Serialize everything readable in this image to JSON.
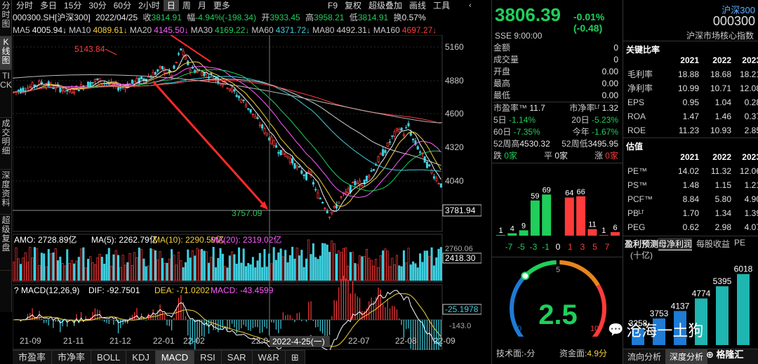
{
  "nav_left": [
    "分时图",
    "K线图",
    "TICK",
    "成交明细",
    "深度资料",
    "超级复盘"
  ],
  "period_tabs": [
    "分时",
    "多日",
    "15分",
    "30分",
    "60分",
    "2小时",
    "日",
    "周",
    "月",
    "更多"
  ],
  "period_active": "日",
  "right_tabs": [
    "F9",
    "复权",
    "超级叠加",
    "画线",
    "工具"
  ],
  "info": {
    "code": "000300.SH[沪深300]",
    "date": "2022/04/25",
    "close_label": "收",
    "close": "3814.91",
    "chg_label": "幅",
    "chg": "-4.94%(-198.34)",
    "open_label": "开",
    "open": "3933.45",
    "high_label": "高",
    "high": "3958.21",
    "low_label": "低",
    "low": "3814.91",
    "turn_label": "换",
    "turn": "0.57%"
  },
  "ma_bar": [
    {
      "label": "MA5",
      "value": "4005.94↓",
      "color": "#f0f0f0"
    },
    {
      "label": "MA10",
      "value": "4089.61↓",
      "color": "#f5d23a"
    },
    {
      "label": "MA20",
      "value": "4145.50↓",
      "color": "#ff5bff"
    },
    {
      "label": "MA30",
      "value": "4169.22↓",
      "color": "#1fcf5a"
    },
    {
      "label": "MA60",
      "value": "4371.72↓",
      "color": "#3fd0e0"
    },
    {
      "label": "MA80",
      "value": "4492.31↓",
      "color": "#cfcfcf"
    },
    {
      "label": "MA160",
      "value": "4697.27↓",
      "color": "#ff3b3b"
    }
  ],
  "price_axis": [
    "5160",
    "4880",
    "4600",
    "4320",
    "4040"
  ],
  "annotations": {
    "high_mark": "5143.84",
    "low_mark": "3757.09",
    "current_price_box": "3781.94"
  },
  "amo_bar": {
    "amo": "AMO: 2728.89亿",
    "ma5": "MA(5): 2262.79亿",
    "ma10": "MA(10): 2290.59亿",
    "ma20": "MA(20): 2319.02亿",
    "axis_top": "2760.06",
    "axis_value": "2418.30"
  },
  "macd_bar": {
    "name": "MACD(12,26,9)",
    "dif": "DIF: -92.7501",
    "dea": "DEA: -71.0202",
    "macd": "MACD: -43.4599",
    "axis_value": "-25.1978",
    "axis_low": "-143.0"
  },
  "x_axis": [
    "21-09",
    "21-11",
    "21-12",
    "22-01",
    "22-02",
    "22-04",
    "22-07",
    "22-08",
    "22-09"
  ],
  "cursor_date": "2022-4-25(一)",
  "bottom_tabs": [
    "市盈率",
    "市净率",
    "BOLL",
    "KDJ",
    "MACD",
    "RSI",
    "SAR",
    "W&R"
  ],
  "bottom_active": "MACD",
  "quote": {
    "price": "3806.39",
    "change": "-0.01% (-0.48)",
    "name": "沪深300",
    "code": "000300",
    "exch": "SSE  9:00:00",
    "desc": "沪深市场核心指数",
    "rows": [
      [
        "金额",
        "0"
      ],
      [
        "成交量",
        "0"
      ],
      [
        "开盘",
        "0.00"
      ],
      [
        "最高",
        "0.00"
      ],
      [
        "最低",
        "0.00"
      ]
    ],
    "pe_row": [
      "市盈率™",
      "11.7",
      "市净率ᴸᶠ",
      "1.32"
    ],
    "perf": [
      [
        "5日",
        "-1.14%",
        "20日",
        "-5.23%"
      ],
      [
        "60日",
        "-7.35%",
        "今年",
        "-1.67%"
      ]
    ],
    "wk52": [
      "52周高",
      "4530.32",
      "52周低",
      "3495.95"
    ],
    "updown": [
      "跌",
      "0家",
      "平",
      "0家",
      "涨",
      "0家"
    ]
  },
  "dist_chart": {
    "bars": [
      1,
      4,
      9,
      59,
      69,
      0,
      64,
      66,
      11,
      1,
      6
    ],
    "labels": [
      "-7",
      "-5",
      "-3",
      "-1",
      "0",
      "1",
      "3",
      "5",
      "7"
    ]
  },
  "gauge": {
    "value": "2.5",
    "min": "0",
    "mid": "5",
    "max": "10",
    "tech_label": "技术面:",
    "tech": "-分",
    "fund_label": "资金面:",
    "fund": "4.9分"
  },
  "ratios": {
    "title": "关键比率",
    "years": [
      "2021",
      "2022",
      "2023"
    ],
    "rows": [
      [
        "毛利率",
        "18.88",
        "18.68",
        "18.21"
      ],
      [
        "净利率",
        "10.99",
        "10.71",
        "12.08"
      ],
      [
        "EPS",
        "0.95",
        "1.04",
        "0.28"
      ],
      [
        "ROA",
        "1.47",
        "1.46",
        "0.37"
      ],
      [
        "ROE",
        "11.23",
        "10.93",
        "2.85"
      ]
    ]
  },
  "valuation": {
    "title": "估值",
    "years": [
      "2021",
      "2022",
      "2023"
    ],
    "rows": [
      [
        "PE™",
        "14.02",
        "11.32",
        "12.06"
      ],
      [
        "PS™",
        "1.48",
        "1.15",
        "1.21"
      ],
      [
        "PCF™",
        "8.84",
        "5.80",
        "4.90"
      ],
      [
        "PBᴸᶠ",
        "1.70",
        "1.34",
        "1.39"
      ],
      [
        "PEG",
        "0.62",
        "2.98",
        "4.07"
      ]
    ]
  },
  "forecast": {
    "tabs": [
      "盈利预测",
      "母净利润",
      "每股收益",
      "PE"
    ],
    "unit": "(十亿)",
    "values": [
      "3258",
      "3753",
      "4137",
      "4774",
      "5395",
      "6018"
    ]
  },
  "right_bottom_tabs": [
    "流向分析",
    "深度分析"
  ],
  "watermark": "沧海一土狗",
  "logo": "格隆汇"
}
